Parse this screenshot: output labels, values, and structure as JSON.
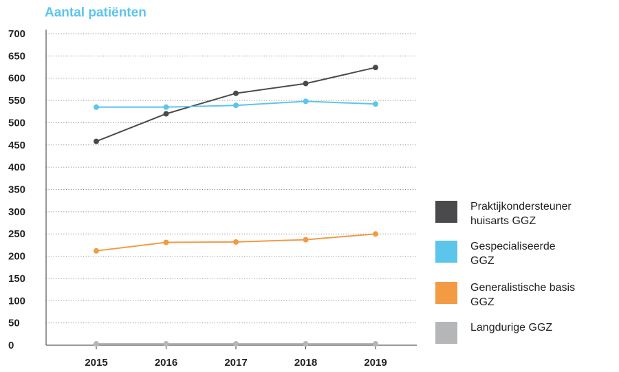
{
  "chart_data": {
    "type": "line",
    "title": "Aantal patiënten",
    "xlabel": "",
    "ylabel": "",
    "categories": [
      "2015",
      "2016",
      "2017",
      "2018",
      "2019"
    ],
    "ylim": [
      0,
      700
    ],
    "yticks": [
      0,
      50,
      100,
      150,
      200,
      250,
      300,
      350,
      400,
      450,
      500,
      550,
      600,
      650,
      700
    ],
    "ytick_labels": [
      "0",
      "50",
      "100",
      "150",
      "200",
      "250",
      "300",
      "350",
      "400",
      "450",
      "500",
      "550",
      "600",
      "650",
      "700"
    ],
    "grid": "horizontal-dotted",
    "legend_position": "right",
    "series": [
      {
        "name": "Praktijkondersteuner huisarts GGZ",
        "legend_lines": [
          "Praktijkondersteuner",
          "huisarts GGZ"
        ],
        "color": "#4a4a4c",
        "values": [
          458,
          520,
          566,
          588,
          624
        ]
      },
      {
        "name": "Gespecialiseerde GGZ",
        "legend_lines": [
          "Gespecialiseerde",
          "GGZ"
        ],
        "color": "#5bc5ec",
        "values": [
          535,
          535,
          539,
          548,
          542
        ]
      },
      {
        "name": "Generalistische basis GGZ",
        "legend_lines": [
          "Generalistische basis",
          "GGZ"
        ],
        "color": "#f39a45",
        "values": [
          212,
          231,
          232,
          237,
          250
        ]
      },
      {
        "name": "Langdurige GGZ",
        "legend_lines": [
          "Langdurige GGZ"
        ],
        "color": "#b5b6b8",
        "values": [
          3,
          3,
          3,
          3,
          3
        ]
      }
    ],
    "colors": {
      "title": "#5bc5ec",
      "axis": "#333333",
      "grid": "#8a8a8a"
    }
  }
}
